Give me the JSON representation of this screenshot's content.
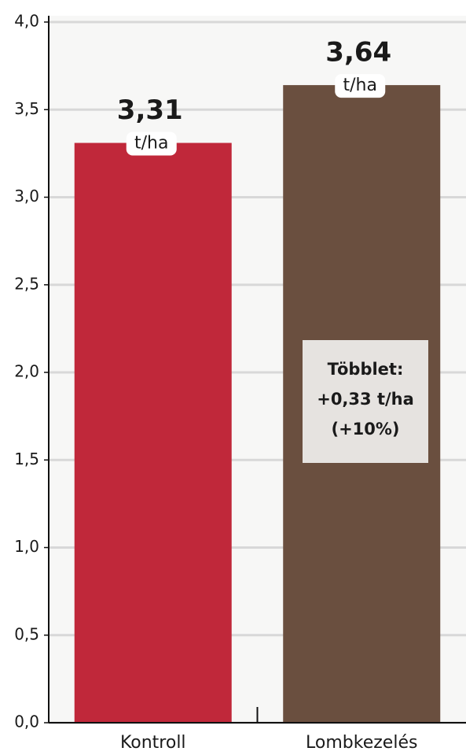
{
  "chart_data": {
    "type": "bar",
    "categories": [
      "Kontroll",
      "Lombkezelés"
    ],
    "values": [
      3.31,
      3.64
    ],
    "value_labels": [
      "3,31",
      "3,64"
    ],
    "unit": "t/ha",
    "colors": [
      "#c0283a",
      "#6a4f3f"
    ],
    "ylim": [
      0,
      4
    ],
    "yticks": [
      {
        "value": 0,
        "label": "0,0"
      },
      {
        "value": 0.5,
        "label": "0,5"
      },
      {
        "value": 1,
        "label": "1,0"
      },
      {
        "value": 1.5,
        "label": "1,5"
      },
      {
        "value": 2,
        "label": "2,0"
      },
      {
        "value": 2.5,
        "label": "2,5"
      },
      {
        "value": 3,
        "label": "3,0"
      },
      {
        "value": 3.5,
        "label": "3,5"
      },
      {
        "value": 4,
        "label": "4,0"
      }
    ],
    "grid": true,
    "annotation": [
      "Többlet:",
      "+0,33 t/ha",
      "(+10%)"
    ]
  }
}
